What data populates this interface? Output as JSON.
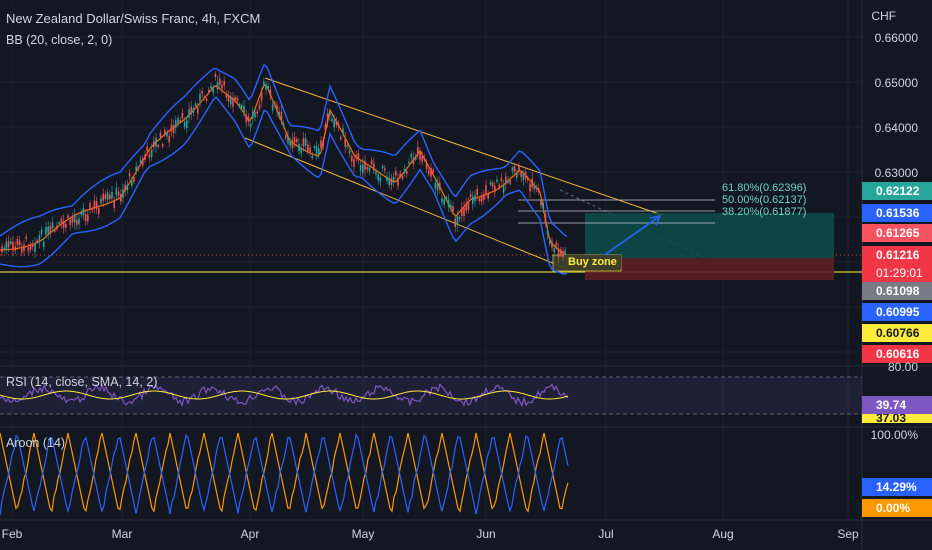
{
  "header": {
    "symbol_title": "New Zealand Dollar/Swiss Franc, 4h, FXCM",
    "indicator_bb": "BB (20, close, 2, 0)"
  },
  "price_axis": {
    "currency": "CHF",
    "ticks": [
      "0.66000",
      "0.65000",
      "0.64000",
      "0.63000"
    ]
  },
  "price_tags": [
    {
      "value": "0.62122",
      "color": "#26a69a"
    },
    {
      "value": "0.61536",
      "color": "#2962ff"
    },
    {
      "value": "0.61265",
      "color": "#f7525f"
    },
    {
      "value": "0.61216",
      "color": "#f23645"
    },
    {
      "value": "01:29:01",
      "color": "#f23645"
    },
    {
      "value": "0.61098",
      "color": "#787b86"
    },
    {
      "value": "0.60995",
      "color": "#2962ff"
    },
    {
      "value": "0.60766",
      "color": "#ffeb3b"
    },
    {
      "value": "0.60616",
      "color": "#f23645"
    }
  ],
  "fib_levels": [
    "61.80%(0.62396)",
    "50.00%(0.62137)",
    "38.20%(0.61877)"
  ],
  "annotation": {
    "buy_zone": "Buy zone"
  },
  "rsi": {
    "label": "RSI (14, close, SMA, 14, 2)",
    "axis_top": "80.00",
    "value_tag": "39.74",
    "value_tag_2": "37.03"
  },
  "aroon": {
    "label": "Aroon (14)",
    "axis_top": "100.00%",
    "up_tag": "14.29%",
    "down_tag": "0.00%"
  },
  "time_axis": [
    "Feb",
    "Mar",
    "Apr",
    "May",
    "Jun",
    "Jul",
    "Aug",
    "Sep"
  ],
  "colors": {
    "background": "#131722",
    "candle_up": "#26a69a",
    "candle_down": "#ef5350",
    "bb_band": "#2962ff",
    "bb_basis": "#ff6d00",
    "channel": "#f7b63e",
    "rsi_line": "#7e57c2",
    "aroon_up": "#ff9800",
    "aroon_down": "#2962ff"
  }
}
